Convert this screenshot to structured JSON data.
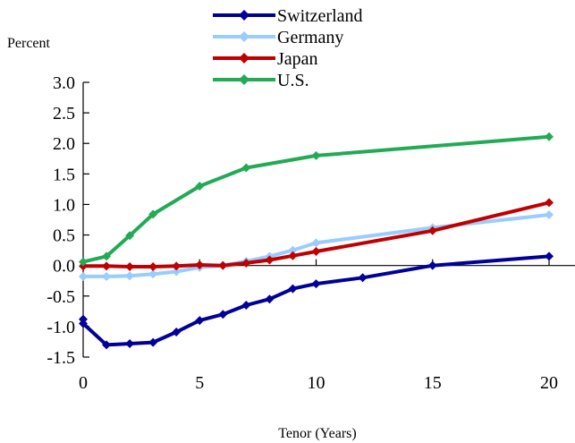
{
  "chart_data": {
    "type": "line",
    "title": "",
    "ylabel": "Percent",
    "xlabel": "Tenor (Years)",
    "xlim": [
      0,
      20
    ],
    "ylim": [
      -1.5,
      3.0
    ],
    "xticks": [
      0,
      5,
      10,
      15,
      20
    ],
    "xtick_labels": [
      "0",
      "5",
      "10",
      "15",
      "20"
    ],
    "yticks": [
      -1.5,
      -1.0,
      -0.5,
      0.0,
      0.5,
      1.0,
      1.5,
      2.0,
      2.5,
      3.0
    ],
    "ytick_labels": [
      "-1.5",
      "-1.0",
      "-0.5",
      "0.0",
      "0.5",
      "1.0",
      "1.5",
      "2.0",
      "2.5",
      "3.0"
    ],
    "grid": false,
    "legend_position": "top-center",
    "series": [
      {
        "name": "Switzerland",
        "color": "#000099",
        "marker": "diamond",
        "x": [
          0,
          0,
          1,
          2,
          3,
          4,
          5,
          6,
          7,
          8,
          9,
          10,
          12,
          15,
          20
        ],
        "y": [
          -0.88,
          -0.95,
          -1.3,
          -1.28,
          -1.26,
          -1.09,
          -0.9,
          -0.8,
          -0.65,
          -0.55,
          -0.38,
          -0.3,
          -0.2,
          0.0,
          0.15
        ]
      },
      {
        "name": "Germany",
        "color": "#99CCFF",
        "marker": "diamond",
        "x": [
          0,
          1,
          2,
          3,
          4,
          5,
          6,
          7,
          8,
          9,
          10,
          15,
          20
        ],
        "y": [
          -0.18,
          -0.18,
          -0.17,
          -0.14,
          -0.1,
          -0.03,
          0.0,
          0.07,
          0.15,
          0.25,
          0.37,
          0.62,
          0.83
        ]
      },
      {
        "name": "Japan",
        "color": "#C00000",
        "marker": "diamond",
        "x": [
          0,
          1,
          2,
          3,
          4,
          5,
          6,
          7,
          8,
          9,
          10,
          15,
          20
        ],
        "y": [
          -0.01,
          -0.01,
          -0.02,
          -0.02,
          -0.01,
          0.01,
          0.0,
          0.04,
          0.09,
          0.16,
          0.23,
          0.57,
          1.03
        ]
      },
      {
        "name": "U.S.",
        "color": "#22AA55",
        "marker": "diamond",
        "x": [
          0,
          1,
          2,
          3,
          5,
          7,
          10,
          20
        ],
        "y": [
          0.06,
          0.15,
          0.49,
          0.84,
          1.3,
          1.6,
          1.8,
          2.11
        ]
      }
    ]
  }
}
